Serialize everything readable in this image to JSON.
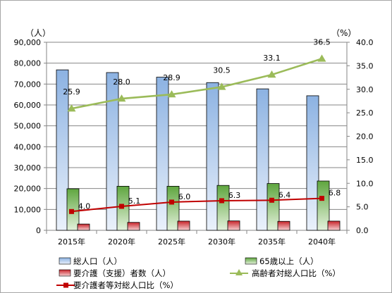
{
  "chart_data": {
    "type": "bar",
    "categories": [
      "2015年",
      "2020年",
      "2025年",
      "2030年",
      "2035年",
      "2040年"
    ],
    "left_unit": "（人）",
    "right_unit": "（%）",
    "left_ticks": [
      "0",
      "10,000",
      "20,000",
      "30,000",
      "40,000",
      "50,000",
      "60,000",
      "70,000",
      "80,000",
      "90,000"
    ],
    "right_ticks": [
      "0.0",
      "5.0",
      "10.0",
      "15.0",
      "20.0",
      "25.0",
      "30.0",
      "35.0",
      "40.0"
    ],
    "ylim": [
      0,
      90000
    ],
    "y2lim": [
      0,
      40
    ],
    "grid": true,
    "legend_position": "bottom",
    "series": [
      {
        "name": "総人口（人）",
        "kind": "bar",
        "axis": "left",
        "color": "#8fb4e3",
        "values": [
          76800,
          75500,
          73300,
          70700,
          67700,
          64400
        ]
      },
      {
        "name": "65歳以上（人）",
        "kind": "bar",
        "axis": "left",
        "color": "#77b05d",
        "values": [
          19900,
          21100,
          21100,
          21500,
          22400,
          23600
        ]
      },
      {
        "name": "要介護（支援）者数（人）",
        "kind": "bar",
        "axis": "left",
        "color": "#d9383b",
        "values": [
          3000,
          3800,
          4400,
          4500,
          4300,
          4400
        ]
      },
      {
        "name": "高齢者対総人口比（%）",
        "kind": "line",
        "axis": "right",
        "color": "#9bbb59",
        "marker": "triangle",
        "values": [
          25.9,
          28.0,
          28.9,
          30.5,
          33.1,
          36.5
        ],
        "labels": [
          "25.9",
          "28.0",
          "28.9",
          "30.5",
          "33.1",
          "36.5"
        ]
      },
      {
        "name": "要介護者等対総人口比（%）",
        "kind": "line",
        "axis": "right",
        "color": "#c00000",
        "marker": "square",
        "values": [
          4.0,
          5.1,
          6.0,
          6.3,
          6.4,
          6.8
        ],
        "labels": [
          "4.0",
          "5.1",
          "6.0",
          "6.3",
          "6.4",
          "6.8"
        ]
      }
    ]
  }
}
